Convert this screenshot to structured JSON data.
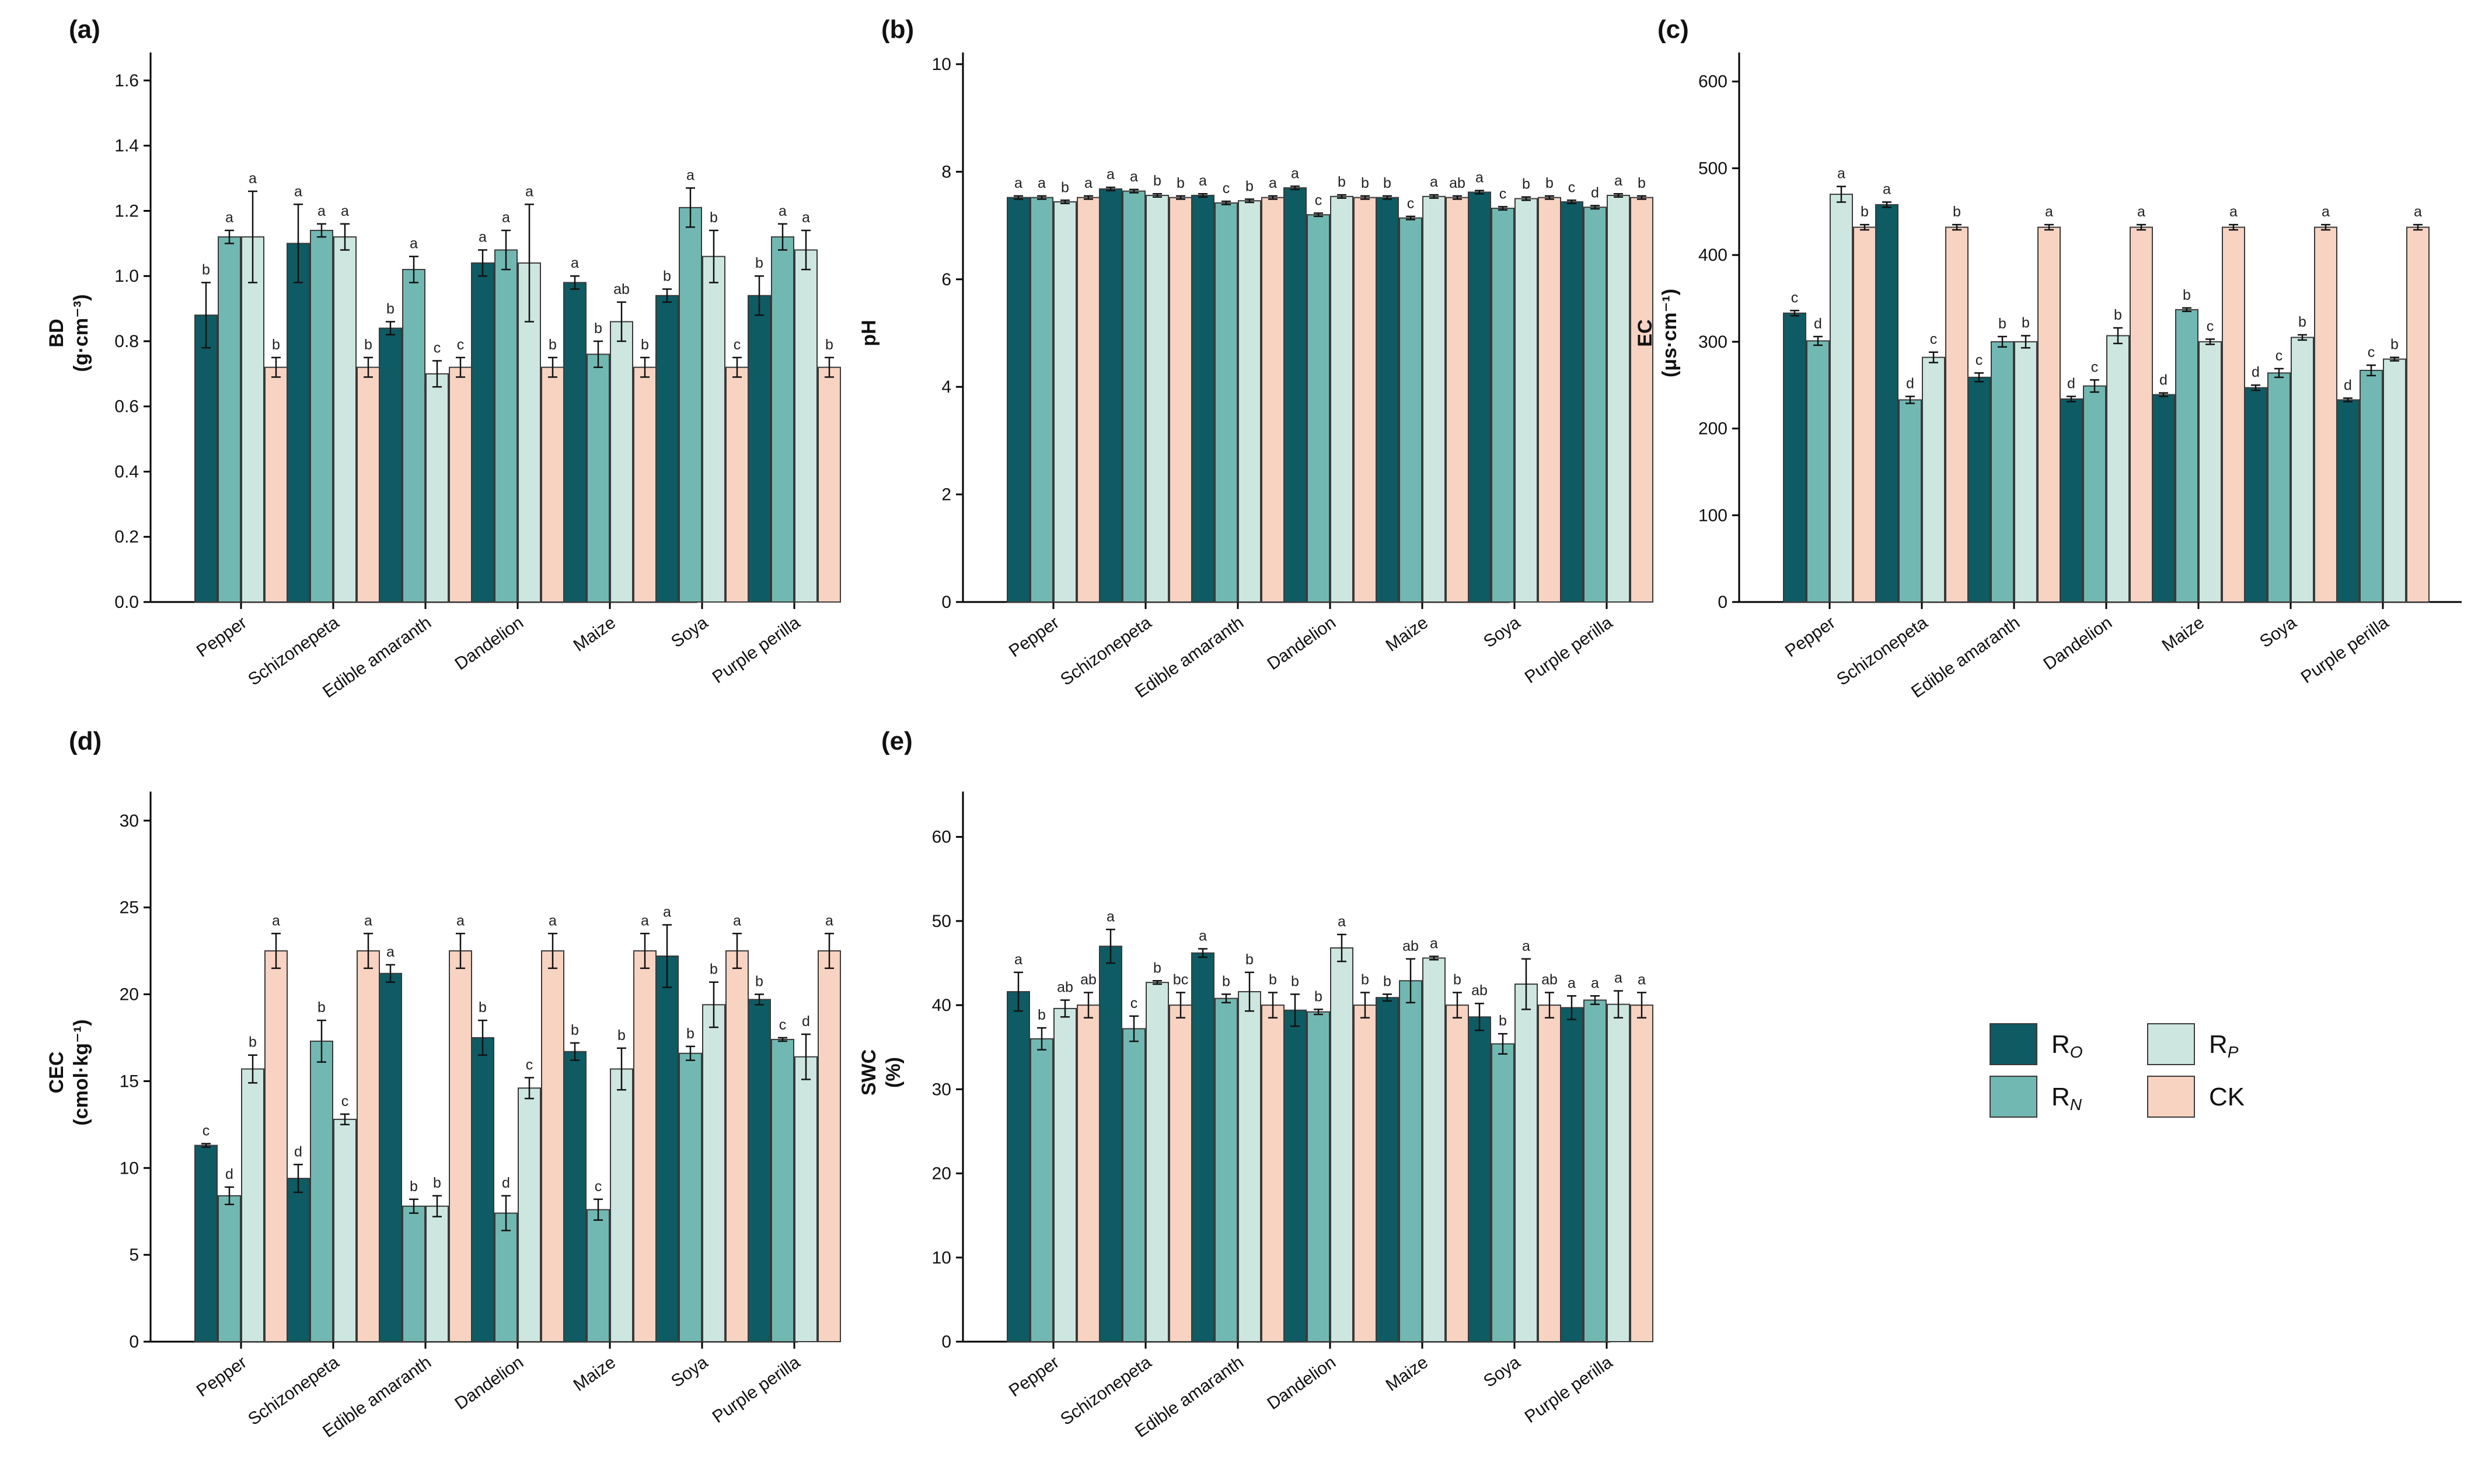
{
  "colors": {
    "RO": "#0e5b63",
    "RN": "#72b8b2",
    "RP": "#cde6e0",
    "CK": "#f8d3c2"
  },
  "legend": [
    {
      "key": "RO",
      "label": "R",
      "sub": "O"
    },
    {
      "key": "RN",
      "label": "R",
      "sub": "N"
    },
    {
      "key": "RP",
      "label": "R",
      "sub": "P"
    },
    {
      "key": "CK",
      "label": "CK",
      "sub": ""
    }
  ],
  "chart_data": [
    {
      "panel": "(a)",
      "type": "bar",
      "ylabel": "BD",
      "yunit": "(g·cm⁻³)",
      "ylim": [
        0,
        1.65
      ],
      "yticks": [
        0.0,
        0.2,
        0.4,
        0.6,
        0.8,
        1.0,
        1.2,
        1.4,
        1.6
      ],
      "tick_labels": [
        "0.0",
        "0.2",
        "0.4",
        "0.6",
        "0.8",
        "1.0",
        "1.2",
        "1.4",
        "1.6"
      ],
      "categories": [
        "Pepper",
        "Schizonepeta",
        "Edible amaranth",
        "Dandelion",
        "Maize",
        "Soya",
        "Purple perilla"
      ],
      "series": [
        {
          "name": "RO",
          "values": [
            0.88,
            1.1,
            0.84,
            1.04,
            0.98,
            0.94,
            0.94
          ],
          "errors": [
            0.1,
            0.12,
            0.02,
            0.04,
            0.02,
            0.02,
            0.06
          ],
          "letters": [
            "b",
            "a",
            "b",
            "a",
            "a",
            "b",
            "b"
          ]
        },
        {
          "name": "RN",
          "values": [
            1.12,
            1.14,
            1.02,
            1.08,
            0.76,
            1.21,
            1.12
          ],
          "errors": [
            0.02,
            0.02,
            0.04,
            0.06,
            0.04,
            0.06,
            0.04
          ],
          "letters": [
            "a",
            "a",
            "a",
            "a",
            "b",
            "a",
            "a"
          ]
        },
        {
          "name": "RP",
          "values": [
            1.12,
            1.12,
            0.7,
            1.04,
            0.86,
            1.06,
            1.08
          ],
          "errors": [
            0.14,
            0.04,
            0.04,
            0.18,
            0.06,
            0.08,
            0.06
          ],
          "letters": [
            "a",
            "a",
            "c",
            "a",
            "ab",
            "b",
            "a"
          ]
        },
        {
          "name": "CK",
          "values": [
            0.72,
            0.72,
            0.72,
            0.72,
            0.72,
            0.72,
            0.72
          ],
          "errors": [
            0.03,
            0.03,
            0.03,
            0.03,
            0.03,
            0.03,
            0.03
          ],
          "letters": [
            "b",
            "b",
            "c",
            "b",
            "b",
            "c",
            "b"
          ]
        }
      ]
    },
    {
      "panel": "(b)",
      "type": "bar",
      "ylabel": "pH",
      "yunit": "",
      "ylim": [
        0,
        10
      ],
      "yticks": [
        0,
        2,
        4,
        6,
        8,
        10
      ],
      "tick_labels": [
        "0",
        "2",
        "4",
        "6",
        "8",
        "10"
      ],
      "categories": [
        "Pepper",
        "Schizonepeta",
        "Edible amaranth",
        "Dandelion",
        "Maize",
        "Soya",
        "Purple perilla"
      ],
      "series": [
        {
          "name": "RO",
          "values": [
            7.52,
            7.68,
            7.56,
            7.7,
            7.52,
            7.62,
            7.44
          ],
          "errors": [
            0.03,
            0.03,
            0.03,
            0.03,
            0.03,
            0.03,
            0.03
          ],
          "letters": [
            "a",
            "a",
            "a",
            "a",
            "b",
            "a",
            "c"
          ]
        },
        {
          "name": "RN",
          "values": [
            7.52,
            7.64,
            7.42,
            7.2,
            7.14,
            7.32,
            7.34
          ],
          "errors": [
            0.03,
            0.03,
            0.03,
            0.03,
            0.03,
            0.03,
            0.03
          ],
          "letters": [
            "a",
            "a",
            "c",
            "c",
            "c",
            "c",
            "d"
          ]
        },
        {
          "name": "RP",
          "values": [
            7.44,
            7.56,
            7.46,
            7.54,
            7.54,
            7.5,
            7.56
          ],
          "errors": [
            0.03,
            0.03,
            0.03,
            0.03,
            0.03,
            0.03,
            0.03
          ],
          "letters": [
            "b",
            "b",
            "b",
            "b",
            "a",
            "b",
            "a"
          ]
        },
        {
          "name": "CK",
          "values": [
            7.52,
            7.52,
            7.52,
            7.52,
            7.52,
            7.52,
            7.52
          ],
          "errors": [
            0.03,
            0.03,
            0.03,
            0.03,
            0.03,
            0.03,
            0.03
          ],
          "letters": [
            "a",
            "b",
            "a",
            "b",
            "ab",
            "b",
            "b"
          ]
        }
      ]
    },
    {
      "panel": "(c)",
      "type": "bar",
      "ylabel": "EC",
      "yunit": "(μs·cm⁻¹)",
      "ylim": [
        0,
        620
      ],
      "yticks": [
        0,
        100,
        200,
        300,
        400,
        500,
        600
      ],
      "tick_labels": [
        "0",
        "100",
        "200",
        "300",
        "400",
        "500",
        "600"
      ],
      "categories": [
        "Pepper",
        "Schizonepeta",
        "Edible amaranth",
        "Dandelion",
        "Maize",
        "Soya",
        "Purple perilla"
      ],
      "series": [
        {
          "name": "RO",
          "values": [
            333,
            458,
            259,
            234,
            239,
            247,
            233
          ],
          "errors": [
            3,
            3,
            5,
            3,
            2,
            3,
            2
          ],
          "letters": [
            "c",
            "a",
            "c",
            "d",
            "d",
            "d",
            "d"
          ]
        },
        {
          "name": "RN",
          "values": [
            301,
            233,
            300,
            249,
            337,
            264,
            267
          ],
          "errors": [
            5,
            4,
            6,
            7,
            2,
            5,
            6
          ],
          "letters": [
            "d",
            "d",
            "b",
            "c",
            "b",
            "c",
            "c"
          ]
        },
        {
          "name": "RP",
          "values": [
            470,
            282,
            300,
            307,
            300,
            305,
            280
          ],
          "errors": [
            9,
            6,
            7,
            9,
            3,
            3,
            2
          ],
          "letters": [
            "a",
            "c",
            "b",
            "b",
            "c",
            "b",
            "b"
          ]
        },
        {
          "name": "CK",
          "values": [
            432,
            432,
            432,
            432,
            432,
            432,
            432
          ],
          "errors": [
            3,
            3,
            3,
            3,
            3,
            3,
            3
          ],
          "letters": [
            "b",
            "b",
            "a",
            "a",
            "a",
            "a",
            "a"
          ]
        }
      ]
    },
    {
      "panel": "(d)",
      "type": "bar",
      "ylabel": "CEC",
      "yunit": "(cmol·kg⁻¹)",
      "ylim": [
        0,
        31
      ],
      "yticks": [
        0,
        5,
        10,
        15,
        20,
        25,
        30
      ],
      "tick_labels": [
        "0",
        "5",
        "10",
        "15",
        "20",
        "25",
        "30"
      ],
      "categories": [
        "Pepper",
        "Schizonepeta",
        "Edible amaranth",
        "Dandelion",
        "Maize",
        "Soya",
        "Purple perilla"
      ],
      "series": [
        {
          "name": "RO",
          "values": [
            11.3,
            9.4,
            21.2,
            17.5,
            16.7,
            22.2,
            19.7
          ],
          "errors": [
            0.1,
            0.8,
            0.5,
            1.0,
            0.5,
            1.8,
            0.3
          ],
          "letters": [
            "c",
            "d",
            "a",
            "b",
            "b",
            "a",
            "b"
          ]
        },
        {
          "name": "RN",
          "values": [
            8.4,
            17.3,
            7.8,
            7.4,
            7.6,
            16.6,
            17.4
          ],
          "errors": [
            0.5,
            1.2,
            0.4,
            1.0,
            0.6,
            0.4,
            0.1
          ],
          "letters": [
            "d",
            "b",
            "b",
            "d",
            "c",
            "b",
            "c"
          ]
        },
        {
          "name": "RP",
          "values": [
            15.7,
            12.8,
            7.8,
            14.6,
            15.7,
            19.4,
            16.4
          ],
          "errors": [
            0.8,
            0.3,
            0.6,
            0.6,
            1.2,
            1.3,
            1.3
          ],
          "letters": [
            "b",
            "c",
            "b",
            "c",
            "b",
            "b",
            "d"
          ]
        },
        {
          "name": "CK",
          "values": [
            22.5,
            22.5,
            22.5,
            22.5,
            22.5,
            22.5,
            22.5
          ],
          "errors": [
            1.0,
            1.0,
            1.0,
            1.0,
            1.0,
            1.0,
            1.0
          ],
          "letters": [
            "a",
            "a",
            "a",
            "a",
            "a",
            "a",
            "a"
          ]
        }
      ]
    },
    {
      "panel": "(e)",
      "type": "bar",
      "ylabel": "SWC",
      "yunit": "(%)",
      "ylim": [
        0,
        64
      ],
      "yticks": [
        0,
        10,
        20,
        30,
        40,
        50,
        60
      ],
      "tick_labels": [
        "0",
        "10",
        "20",
        "30",
        "40",
        "50",
        "60"
      ],
      "categories": [
        "Pepper",
        "Schizonepeta",
        "Edible amaranth",
        "Dandelion",
        "Maize",
        "Soya",
        "Purple perilla"
      ],
      "series": [
        {
          "name": "RO",
          "values": [
            41.6,
            47.0,
            46.2,
            39.4,
            40.9,
            38.6,
            39.7
          ],
          "errors": [
            2.3,
            2.0,
            0.5,
            1.9,
            0.4,
            1.6,
            1.4
          ],
          "letters": [
            "a",
            "a",
            "a",
            "b",
            "b",
            "ab",
            "a"
          ]
        },
        {
          "name": "RN",
          "values": [
            36.0,
            37.2,
            40.8,
            39.2,
            42.9,
            35.4,
            40.6
          ],
          "errors": [
            1.3,
            1.5,
            0.5,
            0.3,
            2.6,
            1.2,
            0.5
          ],
          "letters": [
            "b",
            "c",
            "b",
            "b",
            "ab",
            "b",
            "a"
          ]
        },
        {
          "name": "RP",
          "values": [
            39.6,
            42.7,
            41.6,
            46.8,
            45.6,
            42.5,
            40.1
          ],
          "errors": [
            1.0,
            0.2,
            2.3,
            1.6,
            0.2,
            3.0,
            1.6
          ],
          "letters": [
            "ab",
            "b",
            "b",
            "a",
            "a",
            "a",
            "a"
          ]
        },
        {
          "name": "CK",
          "values": [
            40.0,
            40.0,
            40.0,
            40.0,
            40.0,
            40.0,
            40.0
          ],
          "errors": [
            1.5,
            1.5,
            1.5,
            1.5,
            1.5,
            1.5,
            1.5
          ],
          "letters": [
            "ab",
            "bc",
            "b",
            "b",
            "b",
            "ab",
            "a"
          ]
        }
      ]
    }
  ]
}
